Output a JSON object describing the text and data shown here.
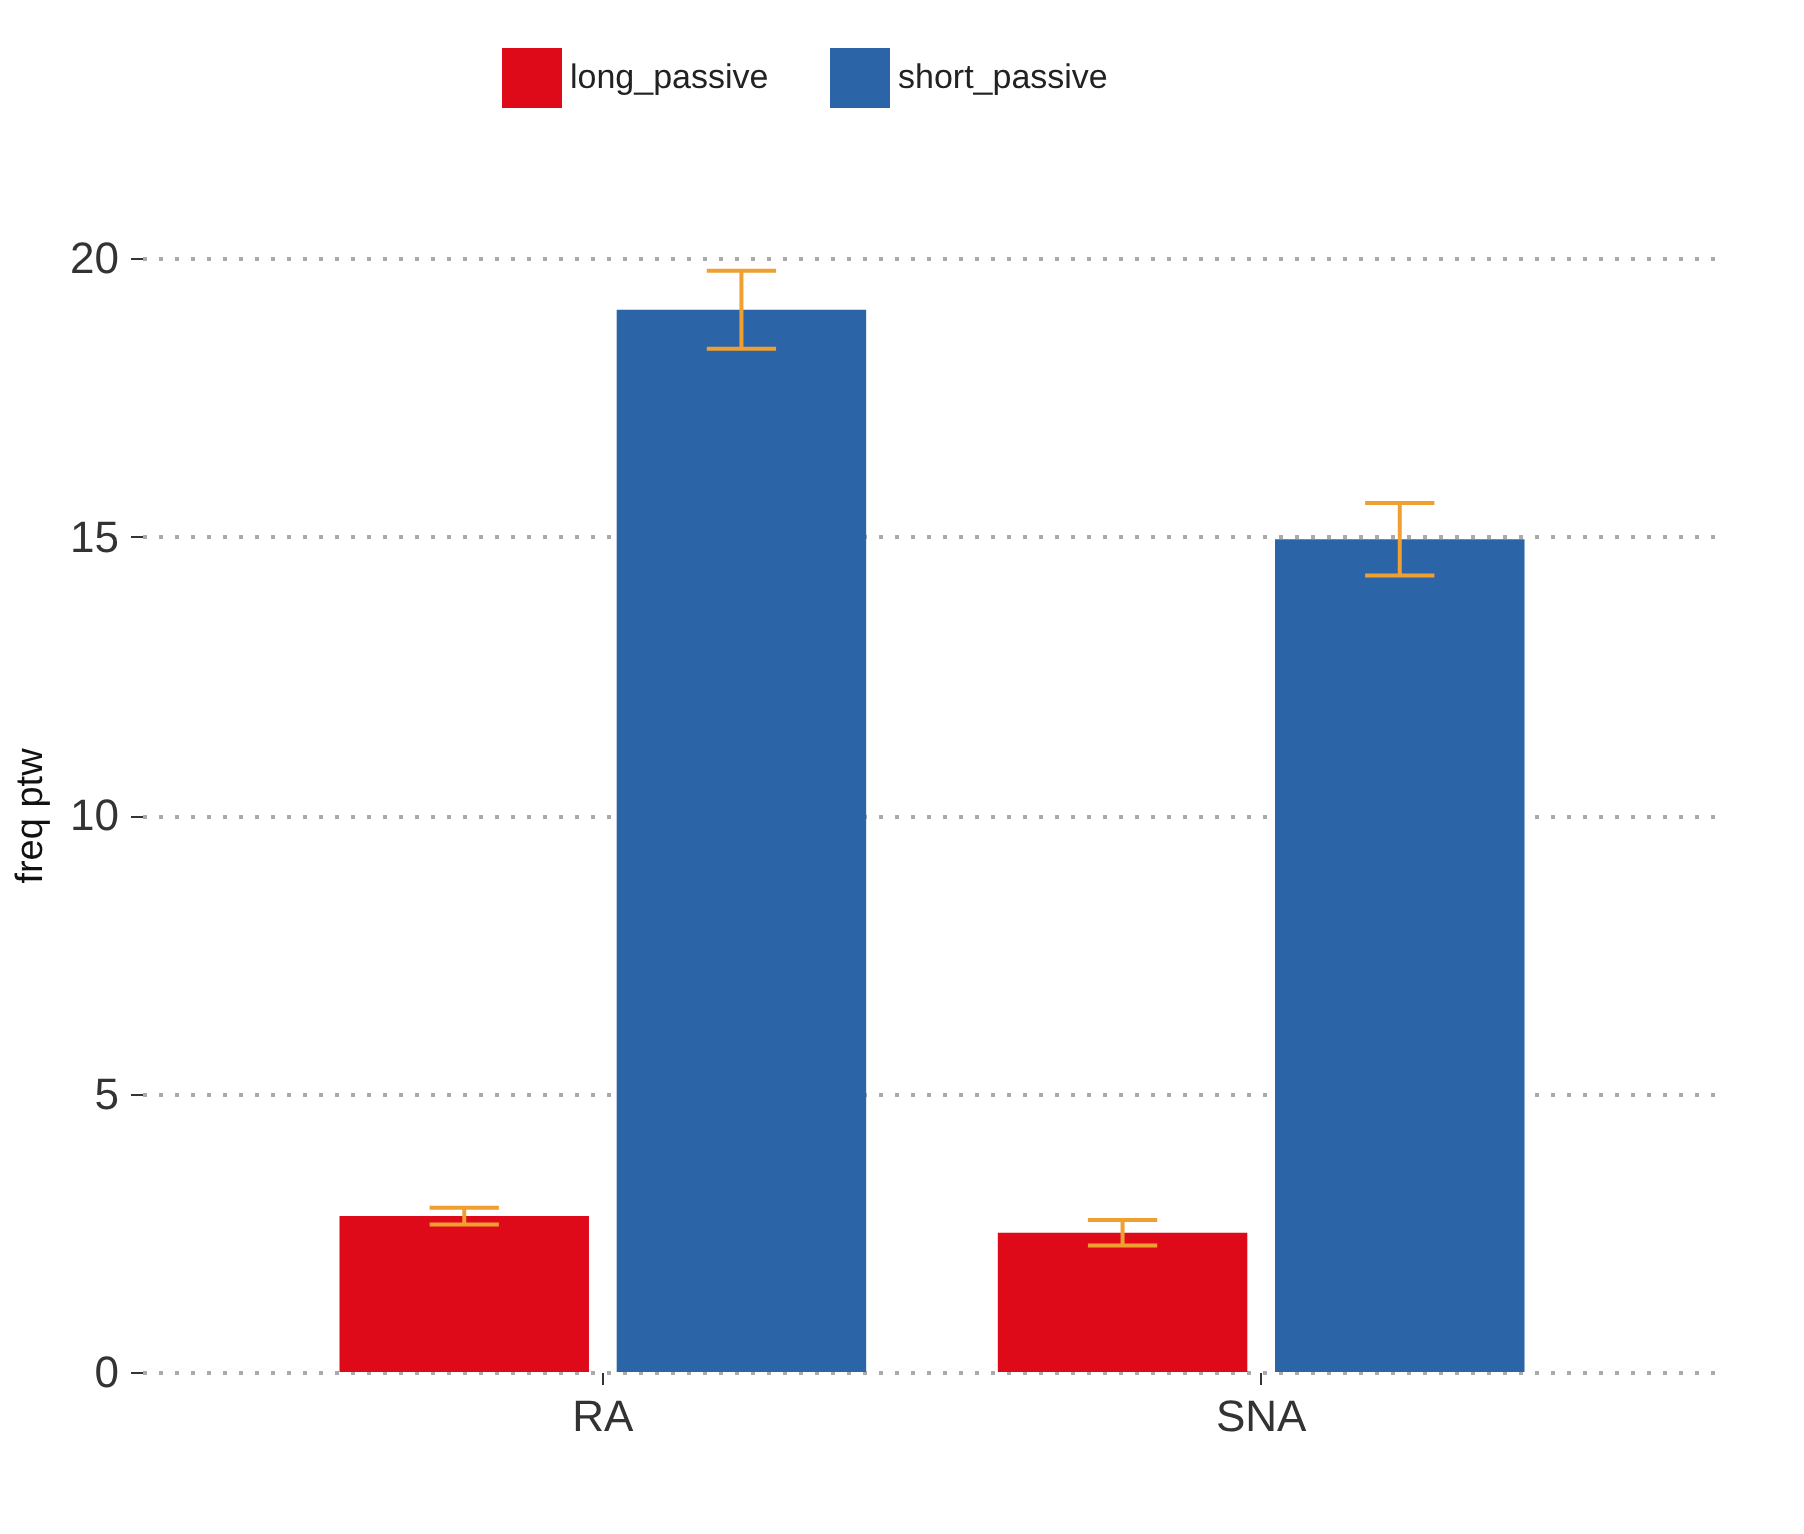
{
  "chart_data": {
    "type": "bar",
    "ylabel": "freq ptw",
    "categories": [
      "RA",
      "SNA"
    ],
    "series": [
      {
        "name": "long_passive",
        "color": "#de0a1a",
        "values": [
          2.8,
          2.5
        ],
        "errors": [
          0.15,
          0.23
        ]
      },
      {
        "name": "short_passive",
        "color": "#2b65a8",
        "values": [
          19.07,
          14.95
        ],
        "errors": [
          0.7,
          0.65
        ]
      }
    ],
    "ylim": [
      0,
      20
    ],
    "yticks": [
      0,
      5,
      10,
      15,
      20
    ],
    "grid": "y",
    "legend": "top"
  }
}
